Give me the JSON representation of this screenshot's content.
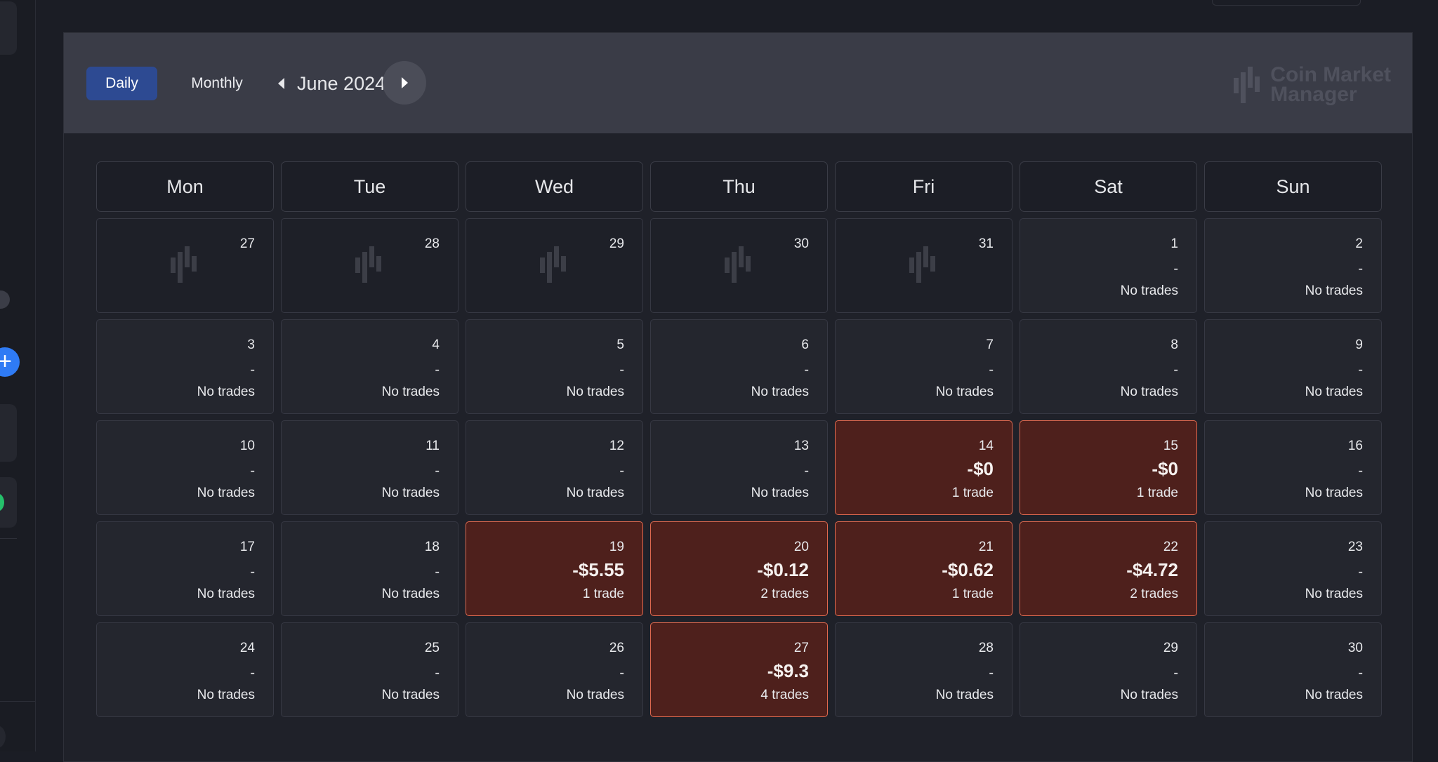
{
  "toolbar": {
    "daily_label": "Daily",
    "monthly_label": "Monthly",
    "month_label": "June 2024",
    "prev_icon": "chevron-left-icon",
    "next_icon": "chevron-right-icon"
  },
  "logo": {
    "line1": "Coin Market",
    "line2": "Manager"
  },
  "weekdays": [
    "Mon",
    "Tue",
    "Wed",
    "Thu",
    "Fri",
    "Sat",
    "Sun"
  ],
  "colors": {
    "accent": "#2d4a92",
    "loss_bg": "#4e201c",
    "loss_border": "#e0694f"
  },
  "weeks": [
    [
      {
        "day": "27",
        "outside": true
      },
      {
        "day": "28",
        "outside": true
      },
      {
        "day": "29",
        "outside": true
      },
      {
        "day": "30",
        "outside": true
      },
      {
        "day": "31",
        "outside": true
      },
      {
        "day": "1",
        "pnl": "-",
        "trades": "No trades"
      },
      {
        "day": "2",
        "pnl": "-",
        "trades": "No trades"
      }
    ],
    [
      {
        "day": "3",
        "pnl": "-",
        "trades": "No trades"
      },
      {
        "day": "4",
        "pnl": "-",
        "trades": "No trades"
      },
      {
        "day": "5",
        "pnl": "-",
        "trades": "No trades"
      },
      {
        "day": "6",
        "pnl": "-",
        "trades": "No trades"
      },
      {
        "day": "7",
        "pnl": "-",
        "trades": "No trades"
      },
      {
        "day": "8",
        "pnl": "-",
        "trades": "No trades"
      },
      {
        "day": "9",
        "pnl": "-",
        "trades": "No trades"
      }
    ],
    [
      {
        "day": "10",
        "pnl": "-",
        "trades": "No trades"
      },
      {
        "day": "11",
        "pnl": "-",
        "trades": "No trades"
      },
      {
        "day": "12",
        "pnl": "-",
        "trades": "No trades"
      },
      {
        "day": "13",
        "pnl": "-",
        "trades": "No trades"
      },
      {
        "day": "14",
        "pnl": "-$0",
        "trades": "1 trade",
        "loss": true
      },
      {
        "day": "15",
        "pnl": "-$0",
        "trades": "1 trade",
        "loss": true
      },
      {
        "day": "16",
        "pnl": "-",
        "trades": "No trades"
      }
    ],
    [
      {
        "day": "17",
        "pnl": "-",
        "trades": "No trades"
      },
      {
        "day": "18",
        "pnl": "-",
        "trades": "No trades"
      },
      {
        "day": "19",
        "pnl": "-$5.55",
        "trades": "1 trade",
        "loss": true
      },
      {
        "day": "20",
        "pnl": "-$0.12",
        "trades": "2 trades",
        "loss": true
      },
      {
        "day": "21",
        "pnl": "-$0.62",
        "trades": "1 trade",
        "loss": true
      },
      {
        "day": "22",
        "pnl": "-$4.72",
        "trades": "2 trades",
        "loss": true
      },
      {
        "day": "23",
        "pnl": "-",
        "trades": "No trades"
      }
    ],
    [
      {
        "day": "24",
        "pnl": "-",
        "trades": "No trades"
      },
      {
        "day": "25",
        "pnl": "-",
        "trades": "No trades"
      },
      {
        "day": "26",
        "pnl": "-",
        "trades": "No trades"
      },
      {
        "day": "27",
        "pnl": "-$9.3",
        "trades": "4 trades",
        "loss": true
      },
      {
        "day": "28",
        "pnl": "-",
        "trades": "No trades"
      },
      {
        "day": "29",
        "pnl": "-",
        "trades": "No trades"
      },
      {
        "day": "30",
        "pnl": "-",
        "trades": "No trades"
      }
    ]
  ]
}
